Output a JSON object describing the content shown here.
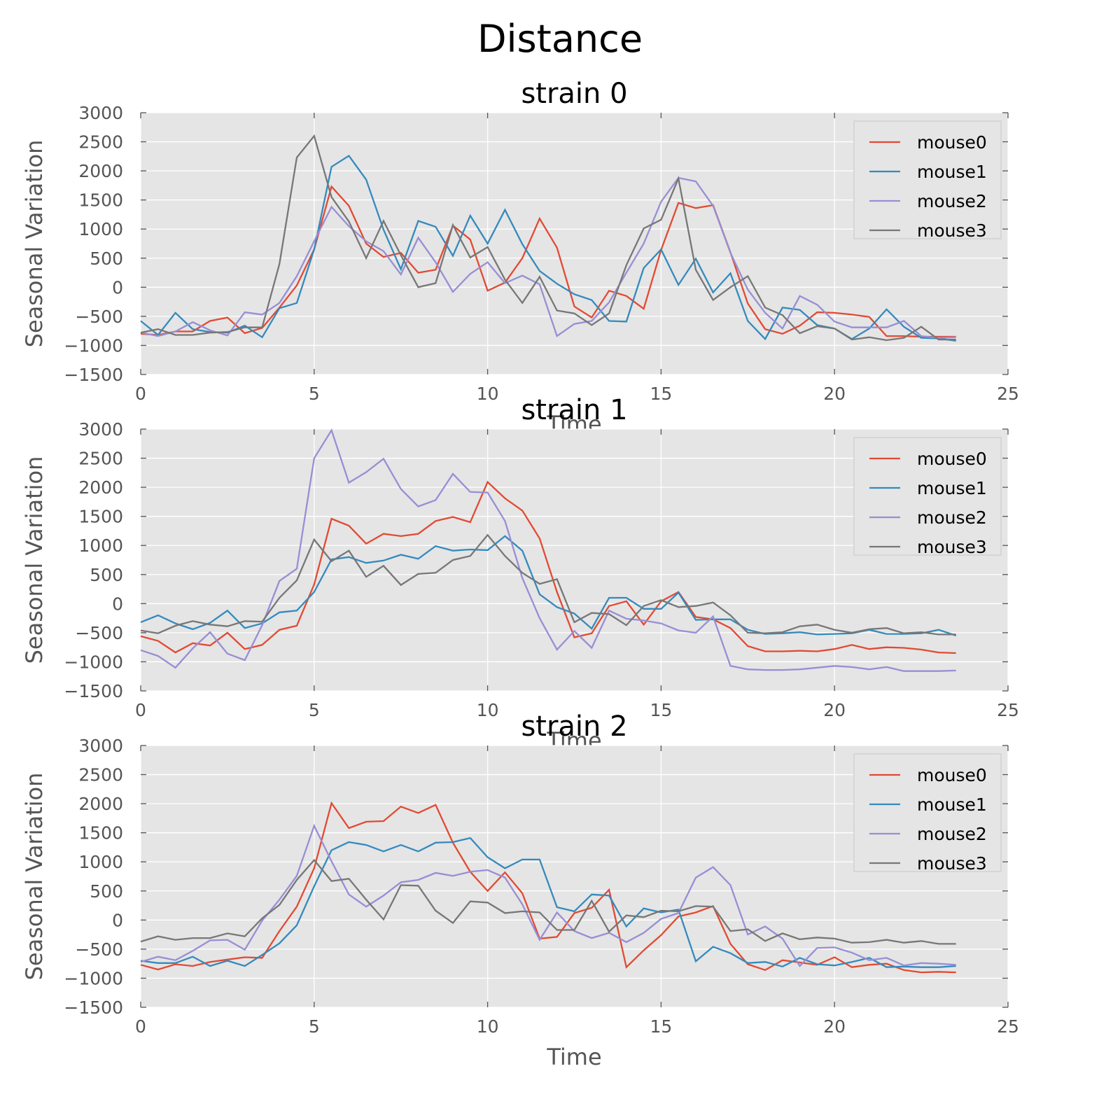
{
  "figure": {
    "title": "Distance"
  },
  "colors": {
    "mouse0": "#E24A33",
    "mouse1": "#348ABD",
    "mouse2": "#988ED5",
    "mouse3": "#777777",
    "axes_bg": "#E5E5E5",
    "grid": "#FFFFFF",
    "tick_text": "#555555"
  },
  "chart_data": [
    {
      "type": "line",
      "title": "strain 0",
      "xlabel": "Time",
      "ylabel": "Seasonal Variation",
      "xlim": [
        0,
        25
      ],
      "ylim": [
        -1500,
        3000
      ],
      "xticks": [
        0,
        5,
        10,
        15,
        20,
        25
      ],
      "yticks": [
        -1500,
        -1000,
        -500,
        0,
        500,
        1000,
        1500,
        2000,
        2500,
        3000
      ],
      "grid": true,
      "legend": "top-right",
      "x": [
        0,
        0.5,
        1,
        1.5,
        2,
        2.5,
        3,
        3.5,
        4,
        4.5,
        5,
        5.5,
        6,
        6.5,
        7,
        7.5,
        8,
        8.5,
        9,
        9.5,
        10,
        10.5,
        11,
        11.5,
        12,
        12.5,
        13,
        13.5,
        14,
        14.5,
        15,
        15.5,
        16,
        16.5,
        17,
        17.5,
        18,
        18.5,
        19,
        19.5,
        20,
        20.5,
        21,
        21.5,
        22,
        22.5,
        23,
        23.5
      ],
      "series": [
        {
          "name": "mouse0",
          "values": [
            -800,
            -820,
            -760,
            -760,
            -580,
            -520,
            -790,
            -700,
            -350,
            30,
            650,
            1730,
            1400,
            750,
            520,
            590,
            250,
            300,
            1060,
            820,
            -60,
            80,
            500,
            1180,
            680,
            -330,
            -520,
            -60,
            -150,
            -370,
            640,
            1450,
            1360,
            1410,
            600,
            -280,
            -720,
            -800,
            -660,
            -430,
            -440,
            -470,
            -510,
            -840,
            -840,
            -850,
            -850,
            -850
          ]
        },
        {
          "name": "mouse1",
          "values": [
            -580,
            -820,
            -440,
            -720,
            -770,
            -780,
            -660,
            -860,
            -360,
            -270,
            650,
            2070,
            2260,
            1850,
            990,
            310,
            1140,
            1040,
            540,
            1230,
            750,
            1330,
            740,
            280,
            60,
            -120,
            -220,
            -580,
            -590,
            330,
            650,
            40,
            490,
            -90,
            240,
            -580,
            -890,
            -350,
            -390,
            -650,
            -710,
            -890,
            -710,
            -380,
            -680,
            -870,
            -880,
            -920
          ]
        },
        {
          "name": "mouse2",
          "values": [
            -780,
            -840,
            -760,
            -600,
            -740,
            -830,
            -430,
            -470,
            -270,
            190,
            790,
            1380,
            1050,
            790,
            620,
            220,
            850,
            430,
            -80,
            230,
            430,
            70,
            200,
            50,
            -840,
            -630,
            -580,
            -260,
            250,
            750,
            1470,
            1880,
            1820,
            1400,
            590,
            -40,
            -440,
            -710,
            -150,
            -300,
            -590,
            -690,
            -690,
            -690,
            -580,
            -840,
            -870,
            -860
          ]
        },
        {
          "name": "mouse3",
          "values": [
            -780,
            -720,
            -820,
            -820,
            -780,
            -770,
            -690,
            -690,
            400,
            2230,
            2600,
            1550,
            1130,
            500,
            1140,
            550,
            0,
            70,
            1070,
            510,
            690,
            130,
            -270,
            180,
            -400,
            -450,
            -650,
            -450,
            380,
            1010,
            1160,
            1870,
            300,
            -220,
            0,
            190,
            -350,
            -480,
            -790,
            -670,
            -710,
            -900,
            -860,
            -910,
            -870,
            -680,
            -900,
            -900
          ]
        }
      ]
    },
    {
      "type": "line",
      "title": "strain 1",
      "xlabel": "Time",
      "ylabel": "Seasonal Variation",
      "xlim": [
        0,
        25
      ],
      "ylim": [
        -1500,
        3000
      ],
      "xticks": [
        0,
        5,
        10,
        15,
        20,
        25
      ],
      "yticks": [
        -1500,
        -1000,
        -500,
        0,
        500,
        1000,
        1500,
        2000,
        2500,
        3000
      ],
      "grid": true,
      "legend": "top-right",
      "x": [
        0,
        0.5,
        1,
        1.5,
        2,
        2.5,
        3,
        3.5,
        4,
        4.5,
        5,
        5.5,
        6,
        6.5,
        7,
        7.5,
        8,
        8.5,
        9,
        9.5,
        10,
        10.5,
        11,
        11.5,
        12,
        12.5,
        13,
        13.5,
        14,
        14.5,
        15,
        15.5,
        16,
        16.5,
        17,
        17.5,
        18,
        18.5,
        19,
        19.5,
        20,
        20.5,
        21,
        21.5,
        22,
        22.5,
        23,
        23.5
      ],
      "series": [
        {
          "name": "mouse0",
          "values": [
            -560,
            -640,
            -840,
            -680,
            -720,
            -500,
            -780,
            -710,
            -450,
            -380,
            330,
            1460,
            1340,
            1030,
            1200,
            1160,
            1200,
            1420,
            1490,
            1400,
            2090,
            1810,
            1600,
            1120,
            200,
            -580,
            -510,
            -40,
            40,
            -360,
            40,
            200,
            -230,
            -270,
            -420,
            -730,
            -820,
            -820,
            -810,
            -820,
            -780,
            -710,
            -780,
            -750,
            -760,
            -790,
            -840,
            -850
          ]
        },
        {
          "name": "mouse1",
          "values": [
            -320,
            -200,
            -340,
            -440,
            -330,
            -120,
            -420,
            -340,
            -150,
            -120,
            200,
            760,
            800,
            700,
            740,
            840,
            770,
            990,
            910,
            930,
            920,
            1160,
            910,
            160,
            -60,
            -170,
            -430,
            100,
            100,
            -90,
            -90,
            190,
            -280,
            -270,
            -270,
            -450,
            -520,
            -510,
            -490,
            -530,
            -520,
            -510,
            -450,
            -520,
            -520,
            -510,
            -450,
            -550
          ]
        },
        {
          "name": "mouse2",
          "values": [
            -800,
            -900,
            -1100,
            -770,
            -490,
            -860,
            -970,
            -370,
            390,
            600,
            2500,
            2980,
            2080,
            2260,
            2490,
            1970,
            1670,
            1780,
            2230,
            1920,
            1910,
            1420,
            440,
            -250,
            -790,
            -470,
            -760,
            -120,
            -260,
            -290,
            -340,
            -460,
            -500,
            -220,
            -1070,
            -1130,
            -1140,
            -1140,
            -1130,
            -1100,
            -1070,
            -1090,
            -1130,
            -1090,
            -1160,
            -1160,
            -1160,
            -1150
          ]
        },
        {
          "name": "mouse3",
          "values": [
            -460,
            -510,
            -380,
            -300,
            -360,
            -390,
            -300,
            -310,
            100,
            400,
            1100,
            730,
            910,
            460,
            650,
            320,
            510,
            530,
            750,
            820,
            1180,
            820,
            530,
            340,
            420,
            -320,
            -160,
            -180,
            -370,
            -40,
            60,
            -60,
            -40,
            20,
            -200,
            -500,
            -510,
            -490,
            -390,
            -360,
            -450,
            -500,
            -440,
            -420,
            -510,
            -490,
            -530,
            -530
          ]
        }
      ]
    },
    {
      "type": "line",
      "title": "strain 2",
      "xlabel": "Time",
      "ylabel": "Seasonal Variation",
      "xlim": [
        0,
        25
      ],
      "ylim": [
        -1500,
        3000
      ],
      "xticks": [
        0,
        5,
        10,
        15,
        20,
        25
      ],
      "yticks": [
        -1500,
        -1000,
        -500,
        0,
        500,
        1000,
        1500,
        2000,
        2500,
        3000
      ],
      "grid": true,
      "legend": "top-right",
      "x": [
        0,
        0.5,
        1,
        1.5,
        2,
        2.5,
        3,
        3.5,
        4,
        4.5,
        5,
        5.5,
        6,
        6.5,
        7,
        7.5,
        8,
        8.5,
        9,
        9.5,
        10,
        10.5,
        11,
        11.5,
        12,
        12.5,
        13,
        13.5,
        14,
        14.5,
        15,
        15.5,
        16,
        16.5,
        17,
        17.5,
        18,
        18.5,
        19,
        19.5,
        20,
        20.5,
        21,
        21.5,
        22,
        22.5,
        23,
        23.5
      ],
      "series": [
        {
          "name": "mouse0",
          "values": [
            -770,
            -850,
            -760,
            -790,
            -720,
            -680,
            -640,
            -650,
            -190,
            230,
            890,
            2010,
            1580,
            1690,
            1700,
            1950,
            1840,
            1980,
            1330,
            830,
            500,
            820,
            460,
            -320,
            -290,
            120,
            210,
            520,
            -810,
            -520,
            -260,
            60,
            130,
            240,
            -410,
            -760,
            -860,
            -690,
            -730,
            -770,
            -640,
            -810,
            -770,
            -750,
            -860,
            -900,
            -890,
            -900
          ]
        },
        {
          "name": "mouse1",
          "values": [
            -700,
            -740,
            -740,
            -630,
            -790,
            -700,
            -790,
            -600,
            -400,
            -90,
            580,
            1200,
            1340,
            1290,
            1180,
            1290,
            1180,
            1330,
            1340,
            1410,
            1080,
            890,
            1040,
            1040,
            220,
            150,
            440,
            420,
            -110,
            200,
            130,
            180,
            -710,
            -460,
            -570,
            -740,
            -720,
            -800,
            -650,
            -760,
            -780,
            -720,
            -650,
            -810,
            -800,
            -810,
            -810,
            -790
          ]
        },
        {
          "name": "mouse2",
          "values": [
            -720,
            -630,
            -690,
            -530,
            -350,
            -340,
            -510,
            -10,
            350,
            760,
            1620,
            1010,
            440,
            230,
            420,
            650,
            690,
            810,
            760,
            830,
            860,
            730,
            270,
            -340,
            130,
            -190,
            -310,
            -220,
            -380,
            -220,
            20,
            120,
            730,
            910,
            600,
            -250,
            -110,
            -320,
            -790,
            -480,
            -470,
            -560,
            -690,
            -650,
            -780,
            -740,
            -750,
            -770
          ]
        },
        {
          "name": "mouse3",
          "values": [
            -370,
            -280,
            -340,
            -310,
            -310,
            -230,
            -280,
            30,
            260,
            690,
            1030,
            670,
            710,
            350,
            10,
            600,
            590,
            160,
            -50,
            320,
            300,
            120,
            150,
            130,
            -170,
            -170,
            330,
            -200,
            80,
            50,
            160,
            150,
            240,
            230,
            -190,
            -160,
            -360,
            -230,
            -330,
            -300,
            -320,
            -390,
            -380,
            -340,
            -390,
            -360,
            -410,
            -410
          ]
        }
      ]
    }
  ]
}
